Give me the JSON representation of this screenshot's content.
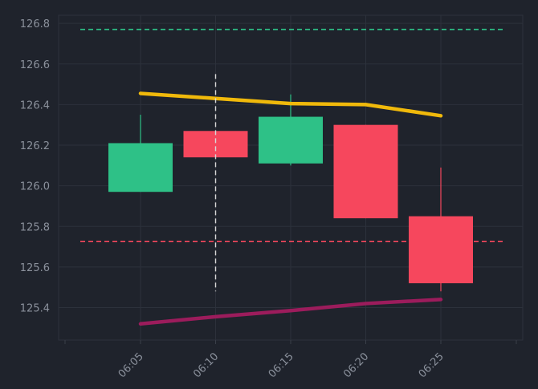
{
  "chart_data": {
    "type": "candlestick",
    "x": [
      "06:05",
      "06:10",
      "06:15",
      "06:20",
      "06:25"
    ],
    "ylim": [
      125.24,
      126.84
    ],
    "yticks": [
      "125.4",
      "125.6",
      "125.8",
      "126.0",
      "126.2",
      "126.4",
      "126.6",
      "126.8"
    ],
    "candles": [
      {
        "x": "06:05",
        "open": 125.97,
        "high": 126.35,
        "low": 125.97,
        "close": 126.21
      },
      {
        "x": "06:10",
        "open": 126.27,
        "high": 126.27,
        "low": 126.14,
        "close": 126.14
      },
      {
        "x": "06:15",
        "open": 126.11,
        "high": 126.45,
        "low": 126.1,
        "close": 126.34
      },
      {
        "x": "06:20",
        "open": 126.3,
        "high": 126.3,
        "low": 125.84,
        "close": 125.84
      },
      {
        "x": "06:25",
        "open": 125.85,
        "high": 126.09,
        "low": 125.48,
        "close": 125.52
      }
    ],
    "upper_line": {
      "x": [
        "06:05",
        "06:10",
        "06:15",
        "06:20",
        "06:25"
      ],
      "values": [
        126.455,
        126.43,
        126.405,
        126.4,
        126.345
      ]
    },
    "lower_line": {
      "x": [
        "06:05",
        "06:10",
        "06:15",
        "06:20",
        "06:25"
      ],
      "values": [
        125.32,
        125.355,
        125.385,
        125.42,
        125.44
      ]
    },
    "upper_reference": 126.77,
    "lower_reference": 125.725,
    "crosshair_x": "06:10",
    "crosshair_range": [
      125.48,
      126.55
    ],
    "grid": true,
    "colors": {
      "background": "#1f232c",
      "grid": "#2c313b",
      "axis": "#3a3f49",
      "up": "#2ec187",
      "down": "#f6475d",
      "upper_line": "#f0b90b",
      "lower_line": "#9c1c5c",
      "upper_reference": "#2ec187",
      "lower_reference": "#f6475d",
      "crosshair": "#d8d8d8",
      "tick_text": "#8b919c"
    }
  }
}
